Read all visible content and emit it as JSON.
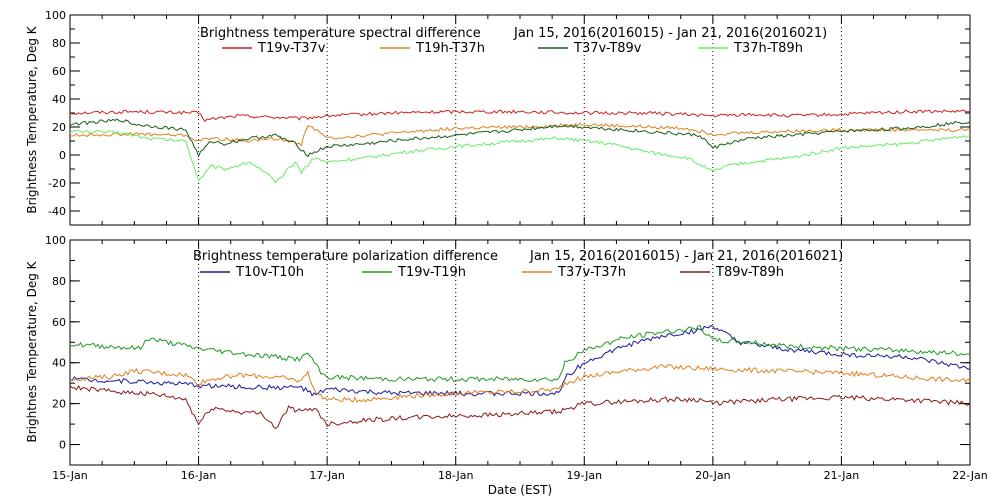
{
  "chart_data": [
    {
      "type": "line",
      "title": "Brightness temperature spectral difference",
      "date_range": "Jan 15, 2016(2016015) - Jan 21, 2016(2016021)",
      "ylabel": "Brightness Temperature, Deg K",
      "xlabel": "",
      "xlim": [
        0,
        7
      ],
      "ylim": [
        -50,
        100
      ],
      "y_ticks": [
        -40,
        -20,
        0,
        20,
        40,
        60,
        80,
        100
      ],
      "grid": "vertical dotted lines at each day",
      "series": [
        {
          "name": "T19v-T37v",
          "color": "#cc2222",
          "x": [
            0,
            0.5,
            1.0,
            1.05,
            1.3,
            1.6,
            1.8,
            2.0,
            2.5,
            3.0,
            3.5,
            4.0,
            4.5,
            4.8,
            5.0,
            5.3,
            5.6,
            6.0,
            6.5,
            7.0
          ],
          "y": [
            30,
            31,
            30,
            25,
            28,
            27,
            26,
            28,
            30,
            31,
            31,
            30,
            30,
            29,
            28,
            29,
            28,
            29,
            31,
            31
          ]
        },
        {
          "name": "T19h-T37h",
          "color": "#e08020",
          "x": [
            0,
            0.5,
            0.9,
            1.0,
            1.1,
            1.4,
            1.6,
            1.8,
            1.85,
            2.0,
            2.3,
            2.7,
            3.0,
            3.5,
            3.8,
            4.0,
            4.2,
            4.5,
            4.8,
            5.0,
            5.3,
            5.6,
            6.0,
            6.5,
            7.0
          ],
          "y": [
            14,
            15,
            14,
            10,
            12,
            10,
            12,
            8,
            22,
            12,
            14,
            17,
            19,
            20,
            21,
            22,
            21,
            20,
            19,
            15,
            16,
            17,
            18,
            18,
            18
          ]
        },
        {
          "name": "T37v-T89v",
          "color": "#1a5c1a",
          "x": [
            0,
            0.4,
            0.5,
            0.7,
            0.9,
            1.0,
            1.1,
            1.2,
            1.4,
            1.6,
            1.75,
            1.85,
            2.0,
            2.3,
            2.6,
            3.0,
            3.5,
            3.8,
            4.0,
            4.3,
            4.6,
            4.9,
            5.0,
            5.1,
            5.3,
            5.6,
            6.0,
            6.5,
            7.0
          ],
          "y": [
            22,
            25,
            22,
            20,
            18,
            0,
            10,
            8,
            12,
            14,
            8,
            0,
            6,
            8,
            11,
            14,
            18,
            21,
            20,
            18,
            16,
            14,
            5,
            8,
            12,
            14,
            17,
            19,
            24
          ]
        },
        {
          "name": "T37h-T89h",
          "color": "#66ee66",
          "x": [
            0,
            0.4,
            0.6,
            0.9,
            1.0,
            1.1,
            1.2,
            1.4,
            1.55,
            1.6,
            1.75,
            1.8,
            1.9,
            2.0,
            2.3,
            2.6,
            3.0,
            3.5,
            3.8,
            4.0,
            4.2,
            4.5,
            4.8,
            5.0,
            5.1,
            5.3,
            5.6,
            6.0,
            6.5,
            7.0
          ],
          "y": [
            17,
            16,
            12,
            10,
            -18,
            -8,
            -10,
            -5,
            -15,
            -20,
            -5,
            -12,
            -2,
            -5,
            -2,
            2,
            6,
            10,
            12,
            10,
            8,
            2,
            -2,
            -12,
            -8,
            -5,
            -2,
            5,
            8,
            14
          ]
        }
      ]
    },
    {
      "type": "line",
      "title": "Brightness temperature polarization difference",
      "date_range": "Jan 15, 2016(2016015) - Jan 21, 2016(2016021)",
      "ylabel": "Brightnes Temperature, Deg K",
      "xlabel": "Date (EST)",
      "xlim": [
        0,
        7
      ],
      "ylim": [
        -10,
        100
      ],
      "y_ticks": [
        0,
        20,
        40,
        60,
        80,
        100
      ],
      "x_tick_labels": [
        "15-Jan",
        "16-Jan",
        "17-Jan",
        "18-Jan",
        "19-Jan",
        "20-Jan",
        "21-Jan",
        "22-Jan"
      ],
      "grid": "vertical dotted lines at each day",
      "series": [
        {
          "name": "T10v-T10h",
          "color": "#1a1a99",
          "x": [
            0,
            0.5,
            1.0,
            1.4,
            1.8,
            1.9,
            2.0,
            2.5,
            3.0,
            3.5,
            3.8,
            3.85,
            4.0,
            4.3,
            4.6,
            4.9,
            5.0,
            5.2,
            5.5,
            6.0,
            6.5,
            7.0
          ],
          "y": [
            32,
            31,
            29,
            28,
            28,
            24,
            27,
            25,
            25,
            25,
            25,
            33,
            40,
            48,
            53,
            56,
            58,
            50,
            47,
            44,
            43,
            37
          ]
        },
        {
          "name": "T19v-T19h",
          "color": "#229922",
          "x": [
            0,
            0.3,
            0.55,
            0.6,
            1.0,
            1.4,
            1.6,
            1.7,
            1.8,
            1.85,
            1.95,
            2.0,
            2.5,
            3.0,
            3.5,
            3.8,
            3.85,
            4.0,
            4.3,
            4.6,
            4.9,
            5.0,
            5.3,
            5.6,
            6.0,
            6.5,
            7.0
          ],
          "y": [
            49,
            48,
            47,
            52,
            47,
            44,
            43,
            42,
            42,
            45,
            35,
            33,
            32,
            32,
            32,
            32,
            40,
            46,
            52,
            55,
            57,
            51,
            50,
            48,
            47,
            46,
            44
          ]
        },
        {
          "name": "T37v-T37h",
          "color": "#e08020",
          "x": [
            0,
            0.3,
            0.5,
            0.9,
            1.0,
            1.1,
            1.3,
            1.6,
            1.8,
            1.85,
            1.9,
            2.0,
            2.3,
            2.7,
            3.0,
            3.5,
            3.8,
            3.85,
            4.0,
            4.3,
            4.6,
            5.0,
            5.5,
            6.0,
            6.5,
            7.0
          ],
          "y": [
            32,
            33,
            36,
            34,
            30,
            32,
            34,
            33,
            31,
            36,
            26,
            22,
            22,
            24,
            25,
            26,
            27,
            30,
            33,
            36,
            38,
            37,
            36,
            35,
            33,
            31
          ]
        },
        {
          "name": "T89v-T89h",
          "color": "#8b1a1a",
          "x": [
            0,
            0.3,
            0.6,
            0.9,
            1.0,
            1.1,
            1.3,
            1.5,
            1.6,
            1.7,
            1.8,
            1.9,
            2.0,
            2.3,
            2.6,
            3.0,
            3.5,
            3.8,
            4.0,
            4.3,
            4.6,
            4.9,
            5.0,
            5.2,
            5.5,
            6.0,
            6.5,
            7.0
          ],
          "y": [
            28,
            26,
            25,
            22,
            10,
            18,
            16,
            15,
            8,
            18,
            16,
            18,
            10,
            12,
            13,
            14,
            15,
            16,
            20,
            21,
            22,
            22,
            20,
            21,
            22,
            23,
            22,
            20
          ]
        }
      ]
    }
  ]
}
